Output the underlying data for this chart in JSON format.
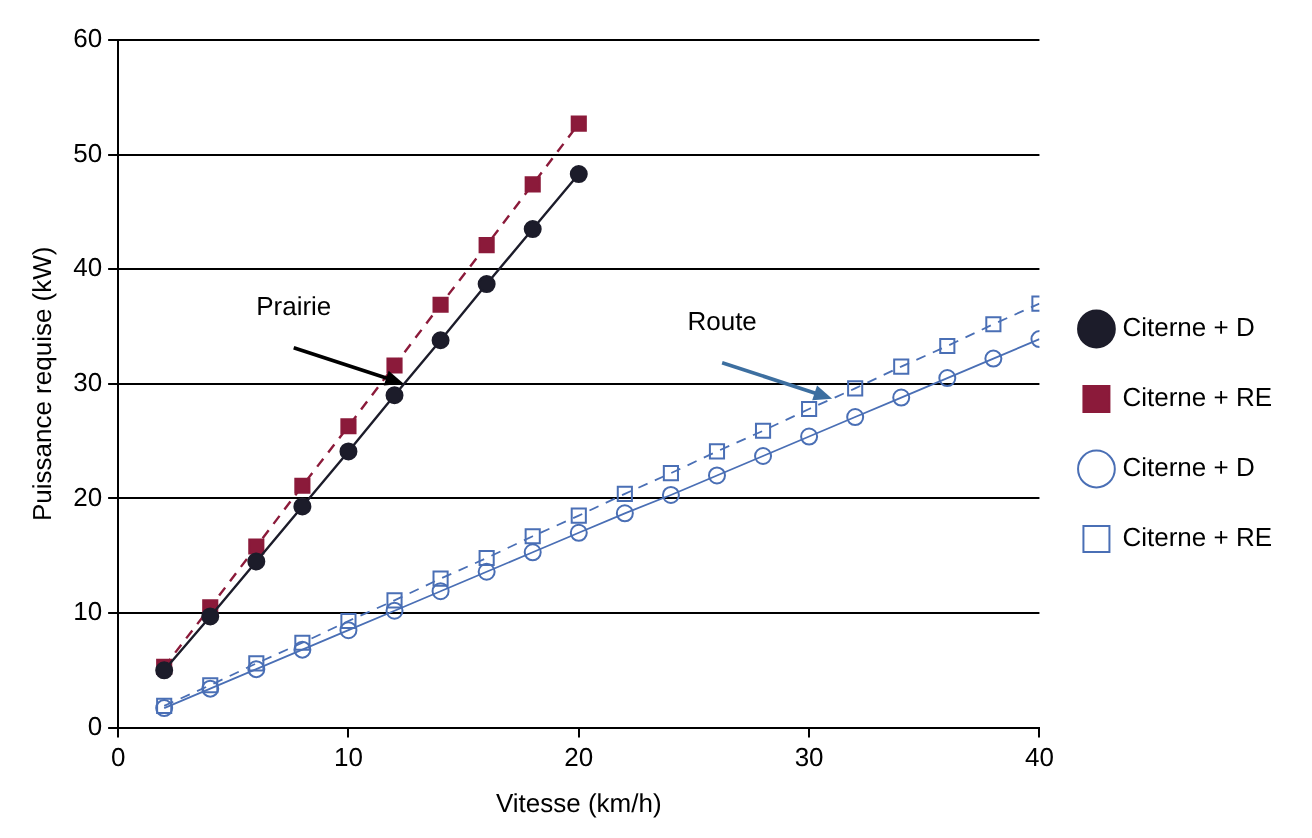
{
  "chart_data": {
    "type": "line",
    "xlabel": "Vitesse (km/h)",
    "ylabel": "Puissance requise (kW)",
    "xlim": [
      0,
      40
    ],
    "xticks": [
      0,
      10,
      20,
      30,
      40
    ],
    "ylim": [
      0,
      60
    ],
    "yticks": [
      0,
      10,
      20,
      30,
      40,
      50,
      60
    ],
    "grid": "y",
    "legend": "right",
    "annotations": [
      {
        "text": "Prairie",
        "x": 12.4,
        "y": 30.0
      },
      {
        "text": "Route",
        "x": 31,
        "y": 28.7
      }
    ],
    "series": [
      {
        "name": "Citerne + D",
        "color": "#1c1c2a",
        "marker": "circle",
        "line_style": "solid",
        "x": [
          2,
          4,
          6,
          8,
          10,
          12,
          14,
          16,
          18,
          20
        ],
        "values": [
          5.0,
          9.7,
          14.5,
          19.3,
          24.1,
          29.0,
          33.8,
          38.7,
          43.5,
          48.3
        ]
      },
      {
        "name": "Citerne + RE",
        "color": "#8b1a3a",
        "marker": "square",
        "line_style": "dashed",
        "x": [
          2,
          4,
          6,
          8,
          10,
          12,
          14,
          16,
          18,
          20
        ],
        "values": [
          5.3,
          10.5,
          15.8,
          21.1,
          26.3,
          31.6,
          36.9,
          42.1,
          47.4,
          52.7
        ]
      },
      {
        "name": "Citerne + D",
        "color": "#4a6fb5",
        "marker": "circle",
        "line_style": "solid",
        "x": [
          2,
          4,
          6,
          8,
          10,
          12,
          14,
          16,
          18,
          20,
          22,
          24,
          26,
          28,
          30,
          32,
          34,
          36,
          38,
          40
        ],
        "values": [
          1.7,
          3.4,
          5.1,
          6.8,
          8.5,
          10.2,
          11.9,
          13.6,
          15.3,
          17.0,
          18.7,
          20.3,
          22.0,
          23.7,
          25.4,
          27.1,
          28.8,
          30.5,
          32.2,
          33.9
        ]
      },
      {
        "name": "Citerne + RE",
        "color": "#4a6fb5",
        "marker": "square",
        "line_style": "dashed",
        "x": [
          2,
          4,
          6,
          8,
          10,
          12,
          14,
          16,
          18,
          20,
          22,
          24,
          26,
          28,
          30,
          32,
          34,
          36,
          38,
          40
        ],
        "values": [
          1.9,
          3.7,
          5.6,
          7.4,
          9.3,
          11.1,
          13.0,
          14.8,
          16.7,
          18.5,
          20.4,
          22.2,
          24.1,
          25.9,
          27.8,
          29.6,
          31.5,
          33.3,
          35.2,
          37.0
        ]
      }
    ]
  }
}
